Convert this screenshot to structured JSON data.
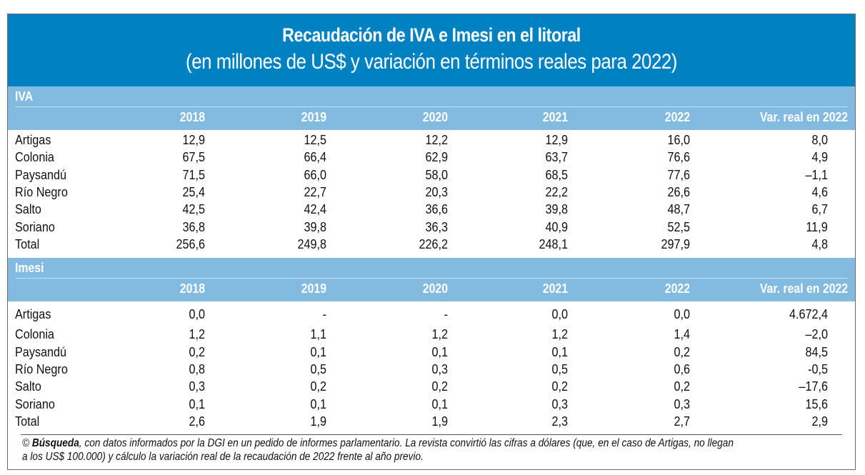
{
  "title": "Recaudación de IVA e Imesi en el litoral",
  "subtitle": "(en millones de US$ y variación en términos reales para 2022)",
  "columns": [
    "2018",
    "2019",
    "2020",
    "2021",
    "2022",
    "Var. real en 2022"
  ],
  "colors": {
    "title_band": "#0082C2",
    "section_band": "#82BAE0"
  },
  "sections": [
    {
      "name": "IVA",
      "rows": [
        {
          "label": "Artigas",
          "values": [
            "12,9",
            "12,5",
            "12,2",
            "12,9",
            "16,0",
            "8,0"
          ]
        },
        {
          "label": "Colonia",
          "values": [
            "67,5",
            "66,4",
            "62,9",
            "63,7",
            "76,6",
            "4,9"
          ]
        },
        {
          "label": "Paysandú",
          "values": [
            "71,5",
            "66,0",
            "58,0",
            "68,5",
            "77,6",
            "–1,1"
          ]
        },
        {
          "label": "Río Negro",
          "values": [
            "25,4",
            "22,7",
            "20,3",
            "22,2",
            "26,6",
            "4,6"
          ]
        },
        {
          "label": "Salto",
          "values": [
            "42,5",
            "42,4",
            "36,6",
            "39,8",
            "48,7",
            "6,7"
          ]
        },
        {
          "label": "Soriano",
          "values": [
            "36,8",
            "39,8",
            "36,3",
            "40,9",
            "52,5",
            "11,9"
          ]
        },
        {
          "label": "Total",
          "values": [
            "256,6",
            "249,8",
            "226,2",
            "248,1",
            "297,9",
            "4,8"
          ]
        }
      ]
    },
    {
      "name": "Imesi",
      "rows": [
        {
          "label": "Artigas",
          "values": [
            "0,0",
            "-",
            "-",
            "0,0",
            "0,0",
            "4.672,4"
          ]
        },
        {
          "label": "Colonia",
          "values": [
            "1,2",
            "1,1",
            "1,2",
            "1,2",
            "1,4",
            "–2,0"
          ]
        },
        {
          "label": "Paysandú",
          "values": [
            "0,2",
            "0,1",
            "0,1",
            "0,1",
            "0,2",
            "84,5"
          ]
        },
        {
          "label": "Río Negro",
          "values": [
            "0,8",
            "0,5",
            "0,3",
            "0,5",
            "0,6",
            "-0,5"
          ]
        },
        {
          "label": "Salto",
          "values": [
            "0,3",
            "0,2",
            "0,2",
            "0,2",
            "0,2",
            "–17,6"
          ]
        },
        {
          "label": "Soriano",
          "values": [
            "0,1",
            "0,1",
            "0,1",
            "0,3",
            "0,3",
            "15,6"
          ]
        },
        {
          "label": "Total",
          "values": [
            "2,6",
            "1,9",
            "1,9",
            "2,3",
            "2,7",
            "2,9"
          ]
        }
      ]
    }
  ],
  "note": {
    "copyright": "©",
    "source_bold": "Búsqueda",
    "line1_rest": ", con datos informados por la DGI en un pedido de informes parlamentario. La revista convirtió las cifras a dólares (que, en el caso de Artigas, no llegan",
    "line2": "a los US$ 100.000) y cálculo la variación real de la recaudación de 2022 frente al año previo."
  }
}
